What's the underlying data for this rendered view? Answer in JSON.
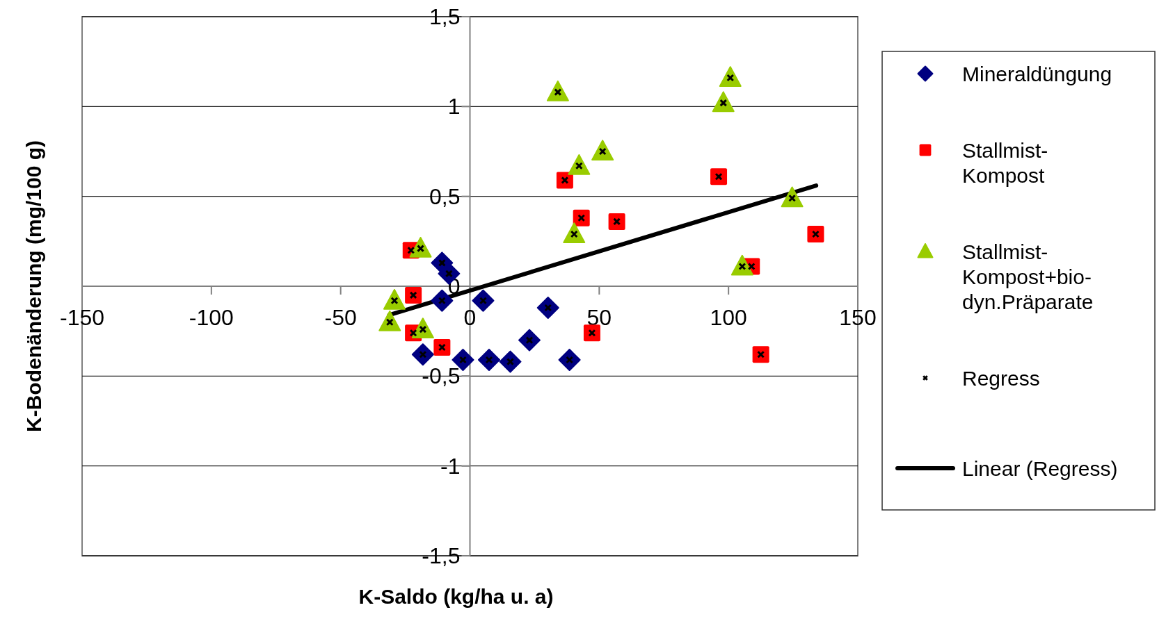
{
  "chart_data": {
    "type": "scatter",
    "xlabel": "K-Saldo (kg/ha u. a)",
    "ylabel": "K-Bodenänderung (mg/100 g)",
    "xlim": [
      -150,
      150
    ],
    "xticks": [
      -150,
      -100,
      -50,
      0,
      50,
      100,
      150
    ],
    "ylim": [
      -1.5,
      1.5
    ],
    "yticks": [
      {
        "value": -1.5,
        "label": "-1,5"
      },
      -1,
      {
        "value": -0.5,
        "label": "-0,5"
      },
      0,
      {
        "value": 0.5,
        "label": "0,5"
      },
      1,
      {
        "value": 1.5,
        "label": "1,5"
      }
    ],
    "grid": "y",
    "legend": "right",
    "series": [
      {
        "name": "Mineraldüngung",
        "color": "#000080",
        "marker": "diamond",
        "x": [
          -10.8,
          -8.1,
          -10.8,
          5.1,
          30.2,
          23.0,
          -18.2,
          -2.7,
          7.4,
          15.6,
          38.5
        ],
        "values": [
          0.13,
          0.07,
          -0.08,
          -0.08,
          -0.12,
          -0.3,
          -0.38,
          -0.41,
          -0.41,
          -0.42,
          -0.41
        ]
      },
      {
        "name": "Stallmist-Kompost",
        "color": "#ff0000",
        "marker": "square",
        "x": [
          -22.8,
          -21.9,
          -21.9,
          -10.8,
          47.2,
          36.7,
          43.1,
          56.8,
          96.2,
          133.7,
          108.9,
          112.5
        ],
        "values": [
          0.2,
          -0.05,
          -0.26,
          -0.34,
          -0.26,
          0.59,
          0.38,
          0.36,
          0.61,
          0.29,
          0.11,
          -0.38
        ]
      },
      {
        "name": "Stallmist-Kompost+bio-dyn.Präparate",
        "color": "#99cc00",
        "marker": "triangle",
        "x": [
          -19.1,
          -29.2,
          -31.0,
          -18.2,
          34.0,
          100.7,
          98.0,
          51.3,
          42.2,
          40.3,
          124.6,
          105.3
        ],
        "values": [
          0.21,
          -0.08,
          -0.2,
          -0.24,
          1.08,
          1.16,
          1.02,
          0.75,
          0.67,
          0.29,
          0.49,
          0.11
        ]
      },
      {
        "name": "Regress",
        "color": "#000000",
        "marker": "cross",
        "x": [
          -10.8,
          -8.1,
          -10.8,
          5.1,
          30.2,
          23.0,
          -18.2,
          -2.7,
          7.4,
          15.6,
          38.5,
          -22.8,
          -21.9,
          -21.9,
          -10.8,
          47.2,
          36.7,
          43.1,
          56.8,
          96.2,
          133.7,
          108.9,
          112.5,
          -19.1,
          -29.2,
          -31.0,
          -18.2,
          34.0,
          100.7,
          98.0,
          51.3,
          42.2,
          40.3,
          124.6,
          105.3
        ],
        "values": [
          0.13,
          0.07,
          -0.08,
          -0.08,
          -0.12,
          -0.3,
          -0.38,
          -0.41,
          -0.41,
          -0.42,
          -0.41,
          0.2,
          -0.05,
          -0.26,
          -0.34,
          -0.26,
          0.59,
          0.38,
          0.36,
          0.61,
          0.29,
          0.11,
          -0.38,
          0.21,
          -0.08,
          -0.2,
          -0.24,
          1.08,
          1.16,
          1.02,
          0.75,
          0.67,
          0.29,
          0.49,
          0.11
        ]
      },
      {
        "name": "Linear (Regress)",
        "type": "line",
        "color": "#000000",
        "marker": "none",
        "line_style": "solid",
        "x": [
          -31.2,
          133.9
        ],
        "values": [
          -0.16,
          0.56
        ]
      }
    ]
  }
}
